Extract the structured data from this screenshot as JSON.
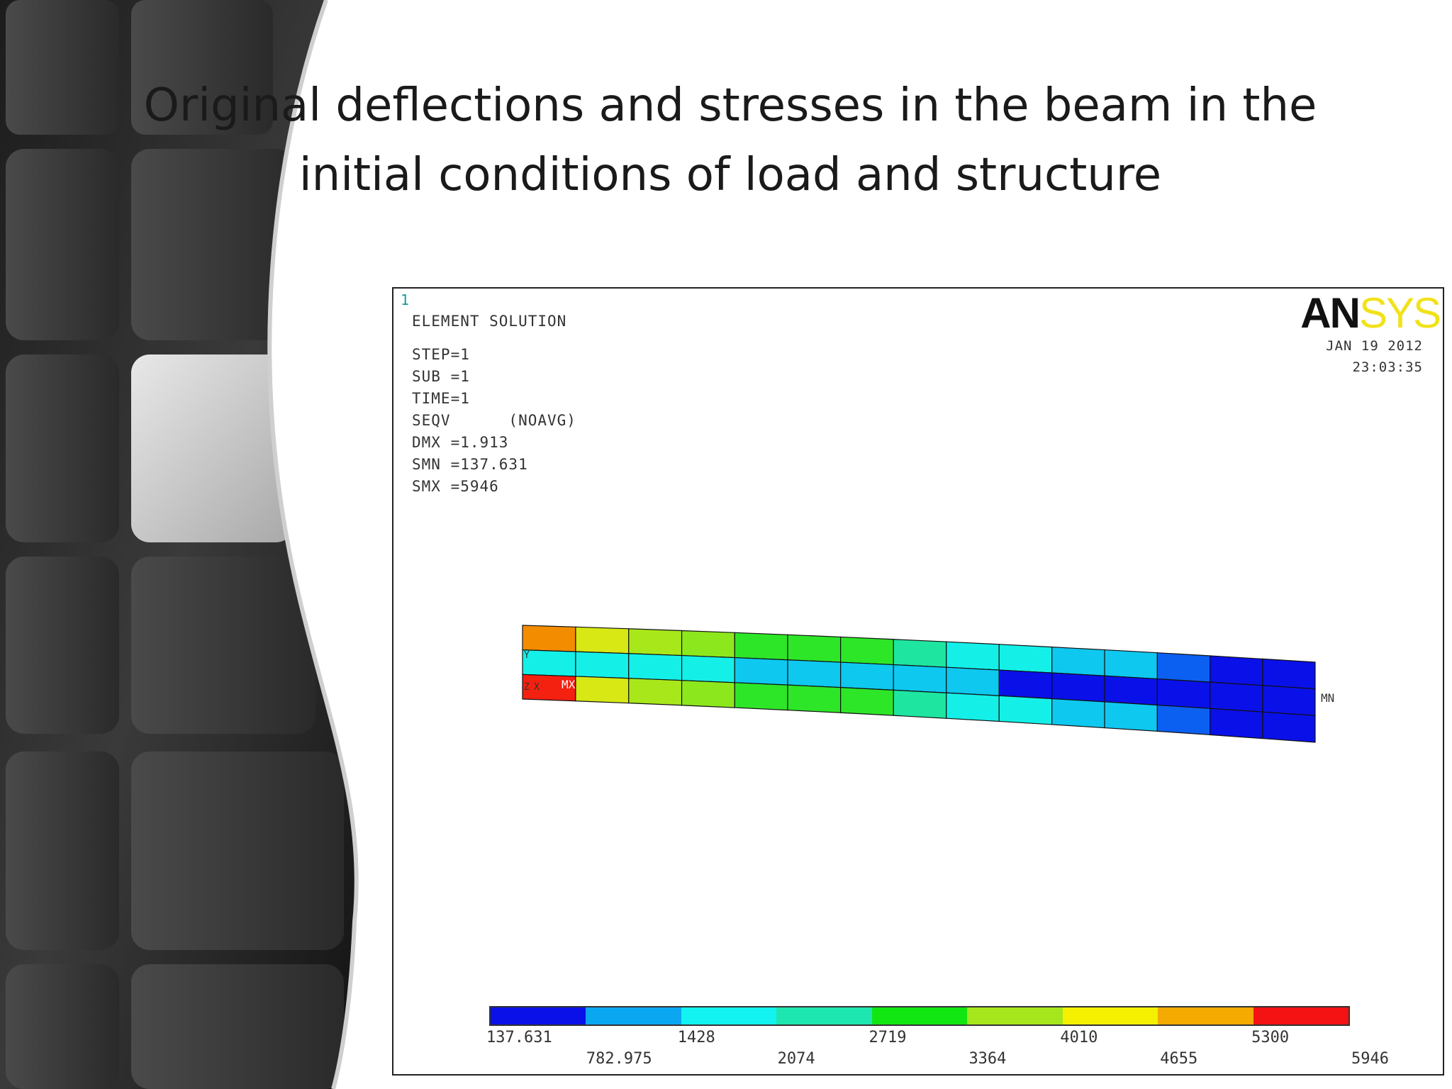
{
  "slide": {
    "title_line1": "Original deflections and stresses in the beam in the",
    "title_line2": "initial conditions of load and structure"
  },
  "ansys_window": {
    "window_number": "1",
    "header": "ELEMENT SOLUTION",
    "info": [
      "STEP=1",
      "SUB =1",
      "TIME=1",
      "SEQV      (NOAVG)",
      "DMX =1.913",
      "SMN =137.631",
      "SMX =5946"
    ],
    "logo_dark": "AN",
    "logo_light": "SYS",
    "date": "JAN 19 2012",
    "time": "23:03:35",
    "min_marker": "MN",
    "max_marker": "MX",
    "axis_y": "Y",
    "axis_z": "Z",
    "axis_x": "X"
  },
  "legend": {
    "colors": [
      "#0a10e8",
      "#0ba6f0",
      "#12f2f0",
      "#1ee6b0",
      "#12e612",
      "#a6e61c",
      "#f4f000",
      "#f4aa00",
      "#f41212"
    ],
    "labels_top": [
      "137.631",
      "1428",
      "2719",
      "4010",
      "5300"
    ],
    "labels_bottom": [
      "782.975",
      "2074",
      "3364",
      "4655",
      "5946"
    ]
  },
  "beam": {
    "columns": 15,
    "rows": 3,
    "row_colors": [
      [
        "#f48c00",
        "#d8e814",
        "#a8e81a",
        "#8ce81c",
        "#2ee628",
        "#2ee628",
        "#2ee628",
        "#1ee6a0",
        "#14f0e8",
        "#14f0e8",
        "#0ec8f0",
        "#0ec8f0",
        "#0b60f2",
        "#0a10e8",
        "#0a10e8"
      ],
      [
        "#14f0e8",
        "#14f0e8",
        "#14f0e8",
        "#14f0e8",
        "#0ec8f0",
        "#0ec8f0",
        "#0ec8f0",
        "#0ec8f0",
        "#0ec8f0",
        "#0a10e8",
        "#0a10e8",
        "#0a10e8",
        "#0a10e8",
        "#0a10e8",
        "#0a10e8"
      ],
      [
        "#f42010",
        "#d8e814",
        "#a8e81a",
        "#8ce81c",
        "#2ee628",
        "#2ee628",
        "#2ee628",
        "#1ee6a0",
        "#14f0e8",
        "#14f0e8",
        "#0ec8f0",
        "#0ec8f0",
        "#0b60f2",
        "#0a10e8",
        "#0a10e8"
      ]
    ]
  }
}
